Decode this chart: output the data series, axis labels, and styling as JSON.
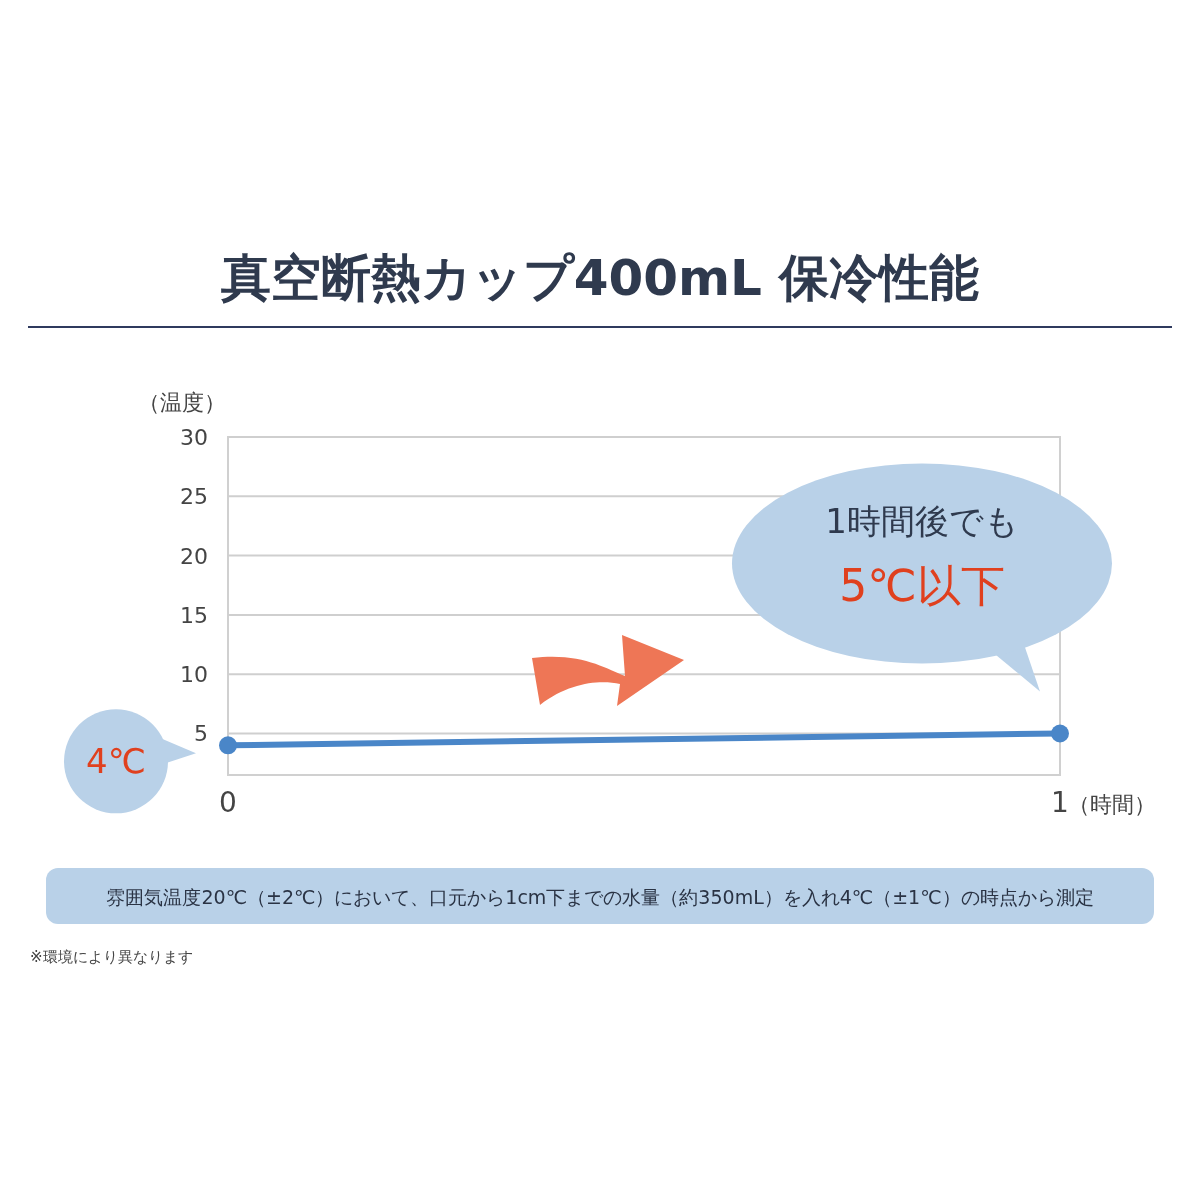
{
  "chart_data": {
    "type": "line",
    "title": "真空断熱カップ400mL 保冷性能",
    "xlabel": "（時間）",
    "ylabel": "（温度）",
    "x": [
      0,
      1
    ],
    "series": [
      {
        "color": "#4a86c8",
        "values": [
          4,
          5
        ]
      }
    ],
    "xlim": [
      0,
      1
    ],
    "xticks": [
      0,
      1
    ],
    "ylim": [
      1.5,
      30
    ],
    "yticks": [
      5,
      10,
      15,
      20,
      25,
      30
    ],
    "grid": "y",
    "marker": "circle",
    "line_style": "solid",
    "annotations": [
      {
        "text": "4℃",
        "x": 0,
        "y": 4
      },
      {
        "text": "1時間後でも\n5℃以下",
        "x": 1,
        "y": 5
      },
      "雰囲気温度20℃（±2℃）において、口元から1cm下までの水量（約350mL）を入れ4℃（±1℃）の時点から測定",
      "※環境により異なります"
    ]
  }
}
